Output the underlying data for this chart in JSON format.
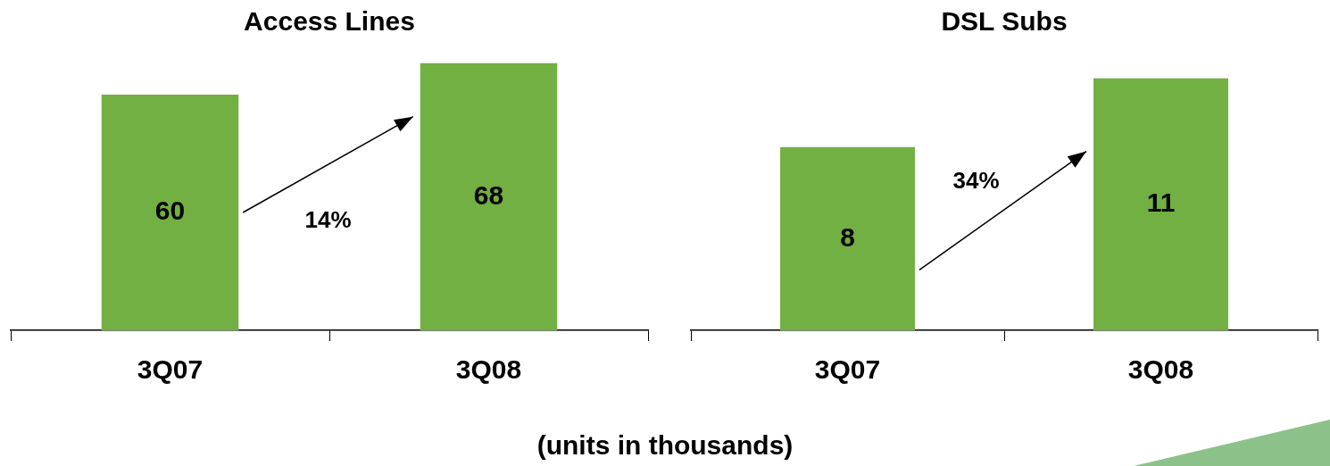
{
  "chart_data": [
    {
      "type": "bar",
      "title": "Access Lines",
      "categories": [
        "3Q07",
        "3Q08"
      ],
      "values": [
        60,
        68
      ],
      "color": "#72b043",
      "data_labels": true,
      "tick_labels": "x",
      "grid": false,
      "legend": false,
      "annotations": [
        "14%",
        "(units in thousands)"
      ]
    },
    {
      "type": "bar",
      "title": "DSL Subs",
      "categories": [
        "3Q07",
        "3Q08"
      ],
      "values": [
        8,
        11
      ],
      "color": "#72b043",
      "data_labels": true,
      "tick_labels": "x",
      "grid": false,
      "legend": false,
      "annotations": [
        "34%"
      ]
    }
  ]
}
